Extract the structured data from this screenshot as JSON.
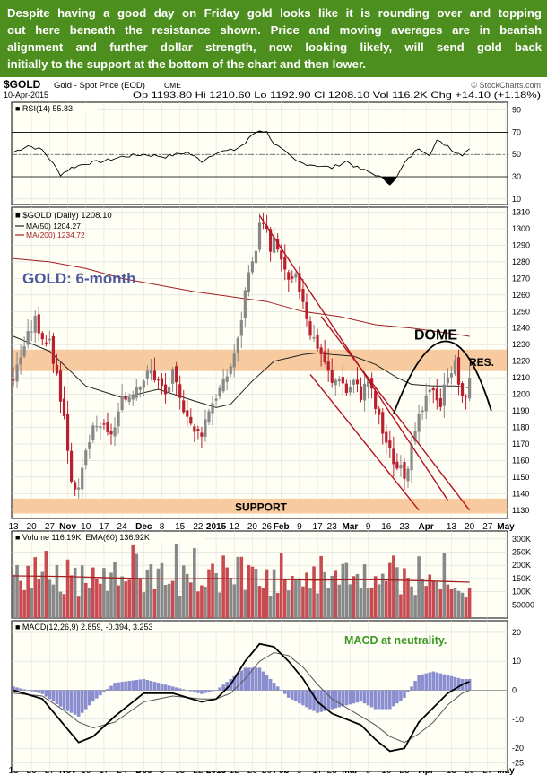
{
  "commentary": {
    "lines": [
      "Despite having a good day on Friday gold looks like it is rounding over and topping",
      "out here beneath the resistance shown. Price and moving averages are in bearish",
      "alignment and further dollar strength, now looking likely, will send gold back",
      "initially to the support at the bottom of the chart and then lower."
    ]
  },
  "header": {
    "symbol": "$GOLD",
    "name": "Gold - Spot Price (EOD)",
    "exchange": "CME",
    "credit": "© StockCharts.com",
    "date": "10-Apr-2015",
    "quote": "Op 1193.80  Hi 1210.60  Lo 1192.90  Cl 1208.10  Vol 116.2K  Chg +14.10 (+1.18%)"
  },
  "colors": {
    "up_bar": "#888888",
    "down_bar": "#b8202f",
    "ma50": "#222222",
    "ma200": "#a22020",
    "channel": "#b31420",
    "zone": "#f7caa0",
    "annotation_blue": "#4b5aa0",
    "annotation_green": "#3c9a22",
    "macd_hist": "#8a8ed0"
  },
  "chart_data": [
    {
      "type": "line",
      "panel": "rsi",
      "legend": "RSI(14) 55.83",
      "yticks": [
        10,
        30,
        50,
        70,
        90
      ],
      "ylim": [
        5,
        97
      ],
      "reference_lines": [
        30,
        50,
        70
      ],
      "key_points": [
        [
          0,
          52
        ],
        [
          4,
          58
        ],
        [
          8,
          54
        ],
        [
          10,
          46
        ],
        [
          13,
          32
        ],
        [
          16,
          38
        ],
        [
          20,
          42
        ],
        [
          25,
          44
        ],
        [
          30,
          48
        ],
        [
          36,
          50
        ],
        [
          42,
          48
        ],
        [
          48,
          52
        ],
        [
          52,
          44
        ],
        [
          56,
          52
        ],
        [
          61,
          54
        ],
        [
          64,
          60
        ],
        [
          66,
          68
        ],
        [
          68,
          72
        ],
        [
          70,
          70
        ],
        [
          72,
          60
        ],
        [
          75,
          52
        ],
        [
          78,
          44
        ],
        [
          80,
          42
        ],
        [
          84,
          40
        ],
        [
          88,
          38
        ],
        [
          92,
          44
        ],
        [
          95,
          38
        ],
        [
          100,
          32
        ],
        [
          102,
          28
        ],
        [
          104,
          24
        ],
        [
          106,
          30
        ],
        [
          108,
          42
        ],
        [
          112,
          56
        ],
        [
          115,
          50
        ],
        [
          117,
          62
        ],
        [
          120,
          58
        ],
        [
          122,
          52
        ],
        [
          124,
          50
        ],
        [
          126,
          56
        ]
      ]
    },
    {
      "type": "bar",
      "panel": "price",
      "legend": [
        "$GOLD (Daily) 1208.10",
        "MA(50) 1204.27",
        "MA(200) 1234.72"
      ],
      "annotations": [
        "GOLD: 6-month",
        "DOME",
        "RES.",
        "SUPPORT"
      ],
      "yticks": [
        1130,
        1140,
        1150,
        1160,
        1170,
        1180,
        1190,
        1200,
        1210,
        1220,
        1230,
        1240,
        1250,
        1260,
        1270,
        1280,
        1290,
        1300,
        1310
      ],
      "ylim": [
        1125,
        1313
      ],
      "resistance_zone": [
        1214,
        1227
      ],
      "support_zone": [
        1128,
        1137
      ],
      "close_path": [
        [
          0,
          1210
        ],
        [
          3,
          1230
        ],
        [
          6,
          1245
        ],
        [
          8,
          1235
        ],
        [
          10,
          1230
        ],
        [
          12,
          1212
        ],
        [
          14,
          1186
        ],
        [
          16,
          1150
        ],
        [
          18,
          1140
        ],
        [
          20,
          1165
        ],
        [
          22,
          1178
        ],
        [
          24,
          1182
        ],
        [
          26,
          1175
        ],
        [
          28,
          1180
        ],
        [
          30,
          1195
        ],
        [
          32,
          1200
        ],
        [
          34,
          1206
        ],
        [
          36,
          1210
        ],
        [
          38,
          1214
        ],
        [
          40,
          1208
        ],
        [
          42,
          1200
        ],
        [
          44,
          1212
        ],
        [
          46,
          1196
        ],
        [
          48,
          1190
        ],
        [
          50,
          1176
        ],
        [
          52,
          1178
        ],
        [
          54,
          1192
        ],
        [
          56,
          1200
        ],
        [
          58,
          1206
        ],
        [
          60,
          1218
        ],
        [
          62,
          1232
        ],
        [
          64,
          1262
        ],
        [
          66,
          1278
        ],
        [
          67,
          1290
        ],
        [
          68,
          1302
        ],
        [
          70,
          1300
        ],
        [
          71,
          1285
        ],
        [
          72,
          1292
        ],
        [
          74,
          1282
        ],
        [
          76,
          1266
        ],
        [
          78,
          1270
        ],
        [
          80,
          1258
        ],
        [
          82,
          1238
        ],
        [
          84,
          1230
        ],
        [
          86,
          1220
        ],
        [
          88,
          1206
        ],
        [
          90,
          1212
        ],
        [
          92,
          1202
        ],
        [
          94,
          1208
        ],
        [
          96,
          1200
        ],
        [
          98,
          1210
        ],
        [
          100,
          1192
        ],
        [
          102,
          1178
        ],
        [
          104,
          1165
        ],
        [
          106,
          1156
        ],
        [
          108,
          1152
        ],
        [
          110,
          1166
        ],
        [
          112,
          1185
        ],
        [
          114,
          1196
        ],
        [
          116,
          1205
        ],
        [
          118,
          1194
        ],
        [
          120,
          1214
        ],
        [
          122,
          1218
        ],
        [
          124,
          1196
        ],
        [
          126,
          1208
        ]
      ],
      "ma50_path": [
        [
          0,
          1235
        ],
        [
          10,
          1226
        ],
        [
          20,
          1205
        ],
        [
          30,
          1198
        ],
        [
          40,
          1203
        ],
        [
          50,
          1196
        ],
        [
          56,
          1192
        ],
        [
          60,
          1194
        ],
        [
          66,
          1208
        ],
        [
          72,
          1220
        ],
        [
          76,
          1222
        ],
        [
          80,
          1224
        ],
        [
          84,
          1225
        ],
        [
          88,
          1224
        ],
        [
          94,
          1223
        ],
        [
          100,
          1218
        ],
        [
          106,
          1210
        ],
        [
          110,
          1206
        ],
        [
          116,
          1205
        ],
        [
          122,
          1205
        ],
        [
          126,
          1204
        ]
      ],
      "ma200_path": [
        [
          0,
          1282
        ],
        [
          10,
          1280
        ],
        [
          20,
          1276
        ],
        [
          30,
          1270
        ],
        [
          40,
          1266
        ],
        [
          50,
          1262
        ],
        [
          60,
          1259
        ],
        [
          70,
          1256
        ],
        [
          80,
          1250
        ],
        [
          90,
          1247
        ],
        [
          100,
          1242
        ],
        [
          110,
          1240
        ],
        [
          120,
          1237
        ],
        [
          126,
          1235
        ]
      ],
      "channel_upper": [
        [
          68,
          1308
        ],
        [
          120,
          1136
        ]
      ],
      "channel_lower": [
        [
          82,
          1212
        ],
        [
          112,
          1130
        ]
      ],
      "channel_median": [
        [
          85,
          1247
        ],
        [
          126,
          1130
        ]
      ],
      "dome": [
        [
          105,
          1188
        ],
        [
          120,
          1232
        ],
        [
          132,
          1190
        ]
      ]
    },
    {
      "type": "bar",
      "panel": "volume",
      "legend": "Volume 116.19K, EMA(60) 136.92K",
      "yticks": [
        50000,
        100000,
        150000,
        200000,
        250000,
        300000
      ],
      "ytick_labels": [
        "50000",
        "100K",
        "150K",
        "200K",
        "250K",
        "300K"
      ],
      "ylim": [
        0,
        330000
      ],
      "series": [
        {
          "name": "EMA(60)",
          "values": [
            160000,
            158000,
            152000,
            148000,
            150000,
            147000,
            144000,
            146000,
            142000,
            136000
          ]
        }
      ],
      "values": [
        164000,
        201000,
        141000,
        106000,
        198000,
        113000,
        231000,
        149000,
        175000,
        255000,
        145000,
        127000,
        201000,
        100000,
        91000,
        222000,
        162000,
        191000,
        81000,
        200000,
        133000,
        116000,
        192000,
        150000,
        130000,
        190000,
        103000,
        172000,
        211000,
        124000,
        158000,
        139000,
        145000,
        276000,
        243000,
        151000,
        98000,
        184000,
        204000,
        109000,
        188000,
        208000,
        126000,
        130000,
        141000,
        280000,
        83000,
        199000,
        167000,
        135000,
        265000,
        101000,
        124000,
        119000,
        185000,
        206000,
        170000,
        97000,
        237000,
        192000,
        153000,
        128000,
        232000,
        232000,
        107000,
        201000,
        195000,
        187000,
        122000,
        115000,
        185000,
        84000,
        185000,
        95000,
        248000,
        150000,
        105000,
        160000,
        144000,
        151000,
        120000,
        172000,
        112000,
        196000,
        94000,
        235000,
        174000,
        115000,
        160000,
        179000,
        127000,
        205000,
        209000,
        128000,
        159000,
        167000,
        112000,
        204000,
        115000,
        116000,
        159000,
        128000,
        168000,
        140000,
        209000,
        237000,
        193000,
        90000,
        189000,
        153000,
        120000,
        88000,
        234000,
        148000,
        122000,
        165000,
        139000,
        137000,
        109000,
        246000,
        127000,
        109000,
        114000,
        103000,
        96000,
        78000,
        116000
      ]
    },
    {
      "type": "line",
      "panel": "macd",
      "legend": "MACD(12,26,9) 2.859, -0.394, 3.253",
      "annotation": "MACD at neutrality.",
      "yticks": [
        -25,
        -20,
        -10,
        0,
        10,
        20
      ],
      "ylim": [
        -28,
        24
      ],
      "series": [
        {
          "name": "MACD",
          "values": [
            [
              0,
              0
            ],
            [
              8,
              -3
            ],
            [
              14,
              -12
            ],
            [
              18,
              -18
            ],
            [
              22,
              -16
            ],
            [
              28,
              -9
            ],
            [
              36,
              -1
            ],
            [
              44,
              -1
            ],
            [
              52,
              -4
            ],
            [
              56,
              -3
            ],
            [
              60,
              2
            ],
            [
              64,
              10
            ],
            [
              68,
              16
            ],
            [
              72,
              15
            ],
            [
              76,
              10
            ],
            [
              80,
              4
            ],
            [
              84,
              -4
            ],
            [
              88,
              -8
            ],
            [
              92,
              -10
            ],
            [
              96,
              -12
            ],
            [
              100,
              -17
            ],
            [
              104,
              -21
            ],
            [
              108,
              -20
            ],
            [
              112,
              -11
            ],
            [
              116,
              -6
            ],
            [
              120,
              -1
            ],
            [
              124,
              2
            ],
            [
              126,
              3
            ]
          ]
        },
        {
          "name": "Signal",
          "values": [
            [
              0,
              -1
            ],
            [
              8,
              -2
            ],
            [
              14,
              -7
            ],
            [
              18,
              -11
            ],
            [
              22,
              -13
            ],
            [
              28,
              -11
            ],
            [
              36,
              -4
            ],
            [
              44,
              -2
            ],
            [
              52,
              -3
            ],
            [
              56,
              -3
            ],
            [
              60,
              -1
            ],
            [
              64,
              4
            ],
            [
              68,
              10
            ],
            [
              72,
              13
            ],
            [
              76,
              12
            ],
            [
              80,
              8
            ],
            [
              84,
              2
            ],
            [
              88,
              -3
            ],
            [
              92,
              -6
            ],
            [
              96,
              -9
            ],
            [
              100,
              -12
            ],
            [
              104,
              -16
            ],
            [
              108,
              -18
            ],
            [
              112,
              -15
            ],
            [
              116,
              -11
            ],
            [
              120,
              -5
            ],
            [
              124,
              -1
            ],
            [
              126,
              0
            ]
          ]
        }
      ]
    }
  ],
  "x_axis": {
    "tick_labels": [
      "13",
      "20",
      "27",
      "Nov",
      "10",
      "17",
      "24",
      "Dec",
      "8",
      "15",
      "22",
      "2015",
      "12",
      "20",
      "26",
      "Feb",
      "9",
      "17",
      "23",
      "Mar",
      "9",
      "16",
      "23",
      "Apr",
      "13",
      "20",
      "27",
      "May"
    ],
    "tick_positions": [
      0,
      5,
      10,
      15,
      20,
      25,
      30,
      36,
      41,
      46,
      51,
      56,
      61,
      66,
      70,
      74,
      79,
      84,
      88,
      93,
      98,
      103,
      108,
      114,
      121,
      126,
      131,
      136
    ],
    "bold_labels": [
      "Nov",
      "Dec",
      "2015",
      "Feb",
      "Mar",
      "Apr",
      "May"
    ]
  }
}
